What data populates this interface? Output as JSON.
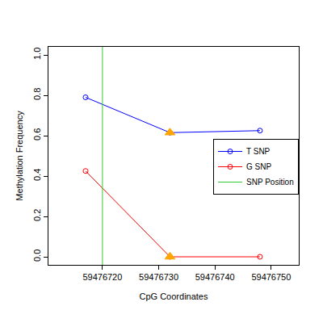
{
  "chart_data": {
    "type": "line",
    "x_label": "CpG Coordinates",
    "y_label": "Methylation Frequency",
    "x": [
      59476717,
      59476732,
      59476748
    ],
    "series": [
      {
        "name": "T SNP",
        "color": "#0000ff",
        "marker": "circle-open",
        "values": [
          0.79,
          0.615,
          0.625
        ]
      },
      {
        "name": "G SNP",
        "color": "#ff0000",
        "marker": "circle-open",
        "values": [
          0.425,
          0.0,
          0.0
        ]
      },
      {
        "type": "scatter",
        "color": "#ffa500",
        "marker": "triangle-up",
        "values": [
          null,
          0.615,
          null
        ]
      },
      {
        "type": "scatter",
        "color": "#ffa500",
        "marker": "triangle-up",
        "values": [
          null,
          0.0,
          null
        ]
      },
      {
        "name": "SNP Position",
        "type": "vline",
        "color": "#33cc33",
        "x": 59476720
      }
    ],
    "xlim": [
      59476710.4,
      59476754.9
    ],
    "ylim": [
      -0.04,
      1.04
    ],
    "xticks": [
      59476720,
      59476730,
      59476740,
      59476750
    ],
    "yticks": [
      {
        "value": 0,
        "label": "0.0"
      },
      0.2,
      0.4,
      0.6,
      0.8,
      {
        "value": 1,
        "label": "1.0"
      }
    ],
    "grid": false,
    "legend": "right"
  }
}
